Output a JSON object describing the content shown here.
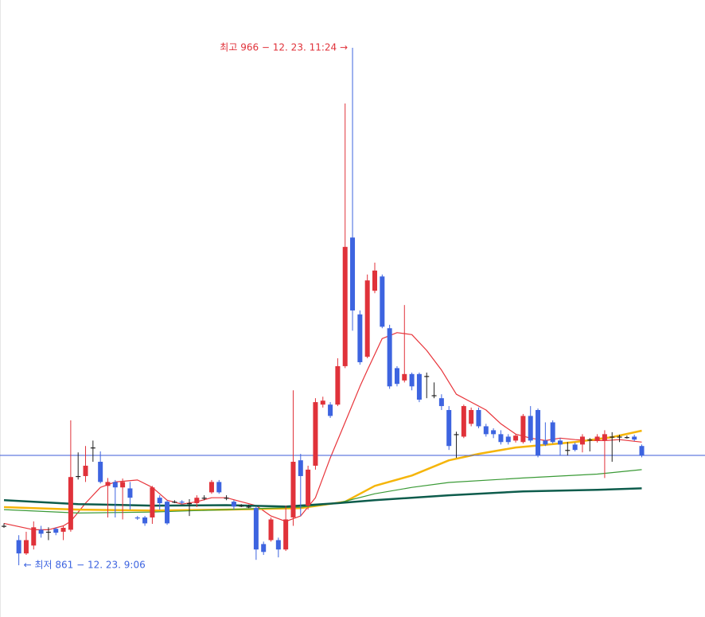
{
  "chart_data": {
    "type": "candlestick",
    "ylim": [
      850.5,
      975.7
    ],
    "reference_line": 883.3,
    "reference_color": "#3d5bd9",
    "up_color": "#e0323a",
    "down_color": "#3d64e0",
    "annotations": [
      {
        "text": "최고 966 − 12. 23. 11:24 →",
        "x": 47,
        "value": 966.0,
        "color": "#e0323a",
        "align": "end"
      },
      {
        "text": "← 최저 861 − 12. 23. 9:06",
        "x": 2,
        "value": 861.0,
        "color": "#3d64e0",
        "align": "start"
      }
    ],
    "open": [
      869.0,
      null,
      866.1,
      863.4,
      865.0,
      868.2,
      867.8,
      868.4,
      867.8,
      868.2,
      879.1,
      879.1,
      884.9,
      882.0,
      877.1,
      877.9,
      876.8,
      876.6,
      870.7,
      870.7,
      870.7,
      874.7,
      873.9,
      873.9,
      873.9,
      873.6,
      873.6,
      874.7,
      875.8,
      877.9,
      874.7,
      873.9,
      873.1,
      872.9,
      872.6,
      865.3,
      866.1,
      866.1,
      864.2,
      870.7,
      882.3,
      873.1,
      881.2,
      893.6,
      893.6,
      893.6,
      901.4,
      927.5,
      911.9,
      903.3,
      916.7,
      919.6,
      909.1,
      901.0,
      898.5,
      899.8,
      899.8,
      899.4,
      895.5,
      894.9,
      892.5,
      887.6,
      887.1,
      889.7,
      892.5,
      889.2,
      888.4,
      887.6,
      887.1,
      886.3,
      886.0,
      891.3,
      892.5,
      886.3,
      890.0,
      886.3,
      884.4,
      885.5,
      885.5,
      886.5,
      886.3,
      886.3,
      887.1,
      887.1,
      887.0,
      887.1,
      885.2
    ],
    "high": [
      869.5,
      null,
      867.1,
      867.8,
      869.9,
      869.0,
      868.7,
      868.7,
      869.0,
      890.4,
      883.9,
      885.2,
      886.3,
      884.1,
      878.7,
      878.3,
      878.6,
      877.9,
      871.0,
      871.0,
      877.1,
      875.2,
      874.2,
      874.2,
      874.2,
      874.4,
      875.2,
      875.2,
      878.3,
      878.3,
      875.2,
      874.2,
      873.4,
      873.3,
      872.9,
      865.8,
      870.7,
      866.6,
      873.1,
      896.5,
      883.6,
      881.2,
      894.9,
      895.2,
      894.1,
      903.0,
      954.7,
      966.0,
      912.7,
      920.0,
      922.4,
      920.0,
      909.8,
      901.4,
      913.8,
      900.1,
      900.1,
      900.1,
      898.1,
      895.7,
      893.3,
      888.1,
      893.6,
      893.0,
      893.0,
      889.7,
      888.8,
      888.4,
      887.6,
      887.6,
      891.7,
      893.3,
      892.8,
      890.0,
      890.4,
      886.8,
      886.0,
      885.9,
      887.6,
      886.8,
      887.6,
      888.4,
      888.0,
      887.5,
      887.3,
      887.5,
      885.5
    ],
    "low": [
      868.6,
      null,
      861.0,
      863.1,
      864.2,
      866.6,
      866.1,
      867.1,
      866.1,
      867.8,
      878.4,
      877.9,
      882.0,
      877.6,
      870.7,
      870.7,
      870.3,
      872.3,
      870.2,
      869.0,
      869.4,
      872.3,
      869.2,
      873.6,
      873.4,
      871.0,
      872.8,
      874.2,
      875.5,
      875.5,
      874.2,
      872.3,
      872.8,
      872.6,
      862.1,
      863.1,
      865.8,
      862.6,
      863.9,
      869.0,
      871.0,
      872.3,
      880.4,
      893.0,
      890.9,
      893.3,
      901.0,
      908.6,
      901.7,
      903.0,
      916.2,
      909.1,
      896.8,
      897.3,
      898.1,
      896.5,
      894.1,
      894.9,
      894.9,
      892.5,
      884.4,
      882.8,
      886.8,
      889.2,
      888.8,
      887.1,
      886.8,
      885.5,
      885.5,
      885.9,
      885.7,
      885.9,
      882.9,
      885.2,
      885.7,
      883.3,
      883.3,
      884.1,
      883.9,
      884.1,
      885.9,
      878.7,
      882.0,
      886.0,
      886.7,
      886.2,
      882.9
    ],
    "close": [
      868.9,
      null,
      863.4,
      866.1,
      868.7,
      867.4,
      867.8,
      867.6,
      868.6,
      878.9,
      879.0,
      881.2,
      884.8,
      877.9,
      877.9,
      876.8,
      877.9,
      874.7,
      870.5,
      869.5,
      876.8,
      873.6,
      869.5,
      873.8,
      873.7,
      873.5,
      874.7,
      874.6,
      877.9,
      875.8,
      874.6,
      872.9,
      873.0,
      872.8,
      864.2,
      863.7,
      870.3,
      864.2,
      870.3,
      882.0,
      879.1,
      880.4,
      894.1,
      894.4,
      891.3,
      901.4,
      925.6,
      912.7,
      902.2,
      918.8,
      920.8,
      909.4,
      897.3,
      897.8,
      899.8,
      897.3,
      894.6,
      899.3,
      895.4,
      893.3,
      885.2,
      887.5,
      893.3,
      892.5,
      889.2,
      887.6,
      887.6,
      886.0,
      886.0,
      887.3,
      891.3,
      886.3,
      883.3,
      885.5,
      886.0,
      885.5,
      884.3,
      884.4,
      887.1,
      886.4,
      887.1,
      887.6,
      887.0,
      887.0,
      886.9,
      886.5,
      883.3
    ],
    "lines": [
      {
        "color": "#e8343a",
        "width": 1.2,
        "x": [
          0,
          4,
          6,
          8,
          9,
          11,
          13,
          15,
          18,
          20,
          22,
          24,
          26,
          28,
          30,
          32,
          34,
          36,
          38,
          40,
          42,
          44,
          46,
          48,
          49,
          51,
          53,
          55,
          57,
          59,
          61,
          63,
          65,
          67,
          69,
          71,
          73,
          75,
          77,
          79,
          81,
          83,
          86
        ],
        "values": [
          869.5,
          868.2,
          868.2,
          869.0,
          869.9,
          873.6,
          876.8,
          877.9,
          878.3,
          876.8,
          874.2,
          873.4,
          873.9,
          874.7,
          874.7,
          873.9,
          873.1,
          871.0,
          869.9,
          871.0,
          874.7,
          882.8,
          890.0,
          897.3,
          900.6,
          907.0,
          908.2,
          907.8,
          904.6,
          900.6,
          895.7,
          894.1,
          892.5,
          889.7,
          887.6,
          886.8,
          886.3,
          886.8,
          886.5,
          886.3,
          886.3,
          886.5,
          886.0
        ]
      },
      {
        "color": "#f5b50a",
        "width": 2.5,
        "x": [
          0,
          10,
          20,
          30,
          40,
          46,
          50,
          55,
          60,
          64,
          69,
          77,
          82,
          86
        ],
        "values": [
          872.8,
          872.3,
          872.1,
          872.3,
          872.6,
          873.9,
          877.1,
          879.2,
          882.3,
          883.6,
          884.9,
          886.0,
          887.0,
          888.3
        ]
      },
      {
        "color": "#3a9a36",
        "width": 1.2,
        "x": [
          0,
          10,
          20,
          30,
          40,
          45,
          50,
          55,
          60,
          70,
          80,
          86
        ],
        "values": [
          872.3,
          871.6,
          871.8,
          872.3,
          872.8,
          873.6,
          875.5,
          876.8,
          877.8,
          878.7,
          879.5,
          880.4
        ]
      },
      {
        "color": "#0d5c4c",
        "width": 2.5,
        "x": [
          0,
          10,
          20,
          30,
          38,
          45,
          50,
          60,
          70,
          80,
          86
        ],
        "values": [
          874.2,
          873.4,
          873.1,
          873.2,
          872.9,
          873.6,
          874.2,
          875.2,
          876.0,
          876.3,
          876.6
        ]
      }
    ]
  }
}
